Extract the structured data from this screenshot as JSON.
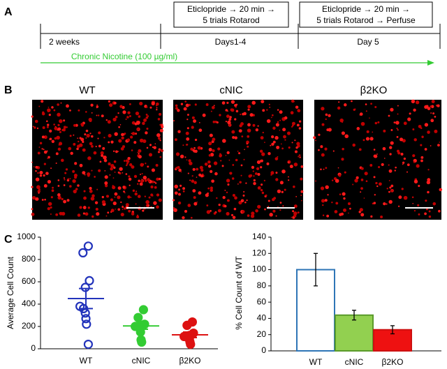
{
  "panel_labels": [
    "A",
    "B",
    "C"
  ],
  "timeline": {
    "boxes": [
      [
        "Eticlopride → 20 min →",
        "5 trials Rotarod"
      ],
      [
        "Eticlopride → 20 min →",
        "5 trials Rotarod → Perfuse"
      ]
    ],
    "periods": [
      "2 weeks",
      "Days1-4",
      "Day 5"
    ],
    "treatment": "Chronic Nicotine (100 µg/ml)"
  },
  "images": {
    "titles": [
      "WT",
      "cNIC",
      "β2KO"
    ]
  },
  "chart_data": [
    {
      "type": "scatter",
      "ylabel": "Average Cell Count",
      "categories": [
        "WT",
        "cNIC",
        "β2KO"
      ],
      "colors": [
        "#2233bb",
        "#33cc33",
        "#dd1111"
      ],
      "filled": [
        false,
        true,
        true
      ],
      "values": [
        [
          920,
          860,
          610,
          550,
          380,
          360,
          320,
          270,
          220,
          40
        ],
        [
          350,
          280,
          220,
          210,
          200,
          200,
          150,
          80,
          60
        ],
        [
          240,
          210,
          140,
          120,
          110,
          100,
          90,
          60,
          40
        ]
      ],
      "means": [
        450,
        205,
        125
      ],
      "sems": [
        90,
        30,
        25
      ],
      "ylim": [
        0,
        1000
      ],
      "yticks": [
        0,
        200,
        400,
        600,
        800,
        1000
      ]
    },
    {
      "type": "bar",
      "ylabel": "% Cell Count of WT",
      "categories": [
        "WT",
        "cNIC",
        "β2KO"
      ],
      "values": [
        100,
        44,
        26
      ],
      "errors": [
        20,
        6,
        5
      ],
      "fills": [
        "#ffffff",
        "#92d050",
        "#ee1111"
      ],
      "strokes": [
        "#2e75b6",
        "#5a9a2a",
        "#cc1111"
      ],
      "ylim": [
        0,
        140
      ],
      "yticks": [
        0,
        20,
        40,
        60,
        80,
        100,
        120,
        140
      ]
    }
  ]
}
